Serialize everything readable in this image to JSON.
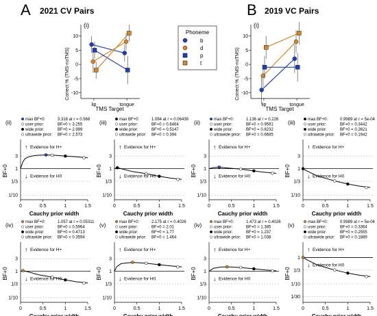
{
  "panels": {
    "A": {
      "letter": "A",
      "title": "2021 CV Pairs",
      "sub": "(i)"
    },
    "B": {
      "letter": "B",
      "title": "2019 VC Pairs",
      "sub": "(i)"
    }
  },
  "legend": {
    "title": "Phoneme",
    "items": [
      {
        "label": "b",
        "color": "#1f3fb5",
        "shape": "circle"
      },
      {
        "label": "d",
        "color": "#d4882a",
        "shape": "circle"
      },
      {
        "label": "p",
        "color": "#1f3fb5",
        "shape": "square"
      },
      {
        "label": "t",
        "color": "#d4882a",
        "shape": "square"
      }
    ]
  },
  "top_axes": {
    "ylabel": "Correct % (TMS-noTMS)",
    "xlabel": "TMS Target",
    "x_ticks": [
      "lip",
      "tongue"
    ],
    "y_ticks": [
      -10,
      -5,
      0,
      5,
      10
    ],
    "ylim": [
      -12,
      14
    ]
  },
  "common": {
    "ylabel": "BF+0",
    "xlabel": "Cauchy prior width",
    "h_plus": "Evidence for H+",
    "h_zero": "Evidence for H0",
    "y_ticks": [
      "3",
      "1",
      "1/3",
      "1/10"
    ],
    "y_ticks_alt": [
      "1",
      "1/3",
      "1/10",
      "1/30"
    ],
    "x_ticks": [
      "0",
      "0.5",
      "1",
      "1.5"
    ],
    "legend_labels": [
      "max BF+0:",
      "user prior:",
      "wide prior:",
      "ultrawide prior:"
    ]
  },
  "colors": {
    "blue": "#1f3fb5",
    "orange": "#d4882a",
    "dark": "#000000"
  },
  "chart_data": [
    {
      "type": "line",
      "panel": "A(i)",
      "x": [
        "lip",
        "tongue"
      ],
      "series": [
        {
          "name": "b",
          "values": [
            7,
            4
          ],
          "err": [
            3,
            3
          ]
        },
        {
          "name": "d",
          "values": [
            1,
            8
          ],
          "err": [
            4,
            3
          ]
        },
        {
          "name": "p",
          "values": [
            5,
            -2
          ],
          "err": [
            3,
            5
          ]
        },
        {
          "name": "t",
          "values": [
            -2,
            11
          ],
          "err": [
            3,
            3
          ]
        }
      ]
    },
    {
      "type": "line",
      "panel": "B(i)",
      "x": [
        "lip",
        "tongue"
      ],
      "series": [
        {
          "name": "b",
          "values": [
            -9,
            2
          ],
          "err": [
            5,
            5
          ]
        },
        {
          "name": "d",
          "values": [
            -4,
            8
          ],
          "err": [
            4,
            4
          ]
        },
        {
          "name": "p",
          "values": [
            -1,
            -1
          ],
          "err": [
            4,
            5
          ]
        },
        {
          "name": "t",
          "values": [
            6,
            11
          ],
          "err": [
            4,
            4
          ]
        }
      ]
    },
    {
      "type": "line",
      "panel": "A(ii)",
      "label": "(ii)",
      "max_color": "blue",
      "texts": [
        "3.316 at r = 0.568",
        "BF+0 = 3.255",
        "BF+0 = 2.999",
        "BF+0 = 2.573"
      ],
      "curve": [
        [
          0,
          1
        ],
        [
          0.05,
          1.8
        ],
        [
          0.1,
          2.4
        ],
        [
          0.2,
          2.9
        ],
        [
          0.35,
          3.2
        ],
        [
          0.568,
          3.316
        ],
        [
          0.8,
          3.2
        ],
        [
          1.0,
          2.999
        ],
        [
          1.25,
          2.8
        ],
        [
          1.5,
          2.573
        ]
      ],
      "max": [
        0.568,
        3.316
      ],
      "user": [
        0.707,
        3.255
      ],
      "wide": [
        1.0,
        2.999
      ],
      "ultrawide": [
        1.414,
        2.573
      ]
    },
    {
      "type": "line",
      "panel": "A(iii)",
      "label": "(iii)",
      "max_color": "dark",
      "texts": [
        "1.084 at r = 0.06439",
        "BF+0 = 0.6464",
        "BF+0 = 0.5147",
        "BF+0 = 0.394"
      ],
      "curve": [
        [
          0,
          1
        ],
        [
          0.06439,
          1.084
        ],
        [
          0.2,
          0.95
        ],
        [
          0.4,
          0.78
        ],
        [
          0.707,
          0.6464
        ],
        [
          1.0,
          0.5147
        ],
        [
          1.25,
          0.44
        ],
        [
          1.5,
          0.394
        ]
      ],
      "max": [
        0.06439,
        1.084
      ],
      "user": [
        0.707,
        0.6464
      ],
      "wide": [
        1.0,
        0.5147
      ],
      "ultrawide": [
        1.414,
        0.394
      ]
    },
    {
      "type": "line",
      "panel": "B(ii)",
      "label": "(ii)",
      "max_color": "blue",
      "texts": [
        "1.136 at r = 0.226",
        "BF+0 = 0.9591",
        "BF+0 = 0.8232",
        "BF+0 = 0.6685"
      ],
      "curve": [
        [
          0,
          1
        ],
        [
          0.1,
          1.1
        ],
        [
          0.226,
          1.136
        ],
        [
          0.4,
          1.07
        ],
        [
          0.707,
          0.9591
        ],
        [
          1.0,
          0.8232
        ],
        [
          1.25,
          0.73
        ],
        [
          1.5,
          0.6685
        ]
      ],
      "max": [
        0.226,
        1.136
      ],
      "user": [
        0.707,
        0.9591
      ],
      "wide": [
        1.0,
        0.8232
      ],
      "ultrawide": [
        1.414,
        0.6685
      ]
    },
    {
      "type": "line",
      "panel": "B(iii)",
      "label": "(iii)",
      "max_color": "dark",
      "texts": [
        "0.9989 at r = 5e-04",
        "BF+0 = 0.3442",
        "BF+0 = 0.2621",
        "BF+0 = 0.1942"
      ],
      "curve": [
        [
          0,
          1
        ],
        [
          0.1,
          0.8
        ],
        [
          0.3,
          0.55
        ],
        [
          0.5,
          0.43
        ],
        [
          0.707,
          0.3442
        ],
        [
          1.0,
          0.2621
        ],
        [
          1.25,
          0.22
        ],
        [
          1.5,
          0.1942
        ]
      ],
      "max": [
        0.0005,
        0.9989
      ],
      "user": [
        0.707,
        0.3442
      ],
      "wide": [
        1.0,
        0.2621
      ],
      "ultrawide": [
        1.414,
        0.1942
      ]
    },
    {
      "type": "line",
      "panel": "A(iv)",
      "label": "(iv)",
      "max_color": "orange",
      "texts": [
        "1.057 at r = 0.05311",
        "BF+0 = 0.5964",
        "BF+0 = 0.4713",
        "BF+0 = 0.3594"
      ],
      "curve": [
        [
          0,
          1
        ],
        [
          0.05311,
          1.057
        ],
        [
          0.2,
          0.92
        ],
        [
          0.4,
          0.74
        ],
        [
          0.707,
          0.5964
        ],
        [
          1.0,
          0.4713
        ],
        [
          1.25,
          0.4
        ],
        [
          1.5,
          0.3594
        ]
      ],
      "max": [
        0.05311,
        1.057
      ],
      "user": [
        0.707,
        0.5964
      ],
      "wide": [
        1.0,
        0.4713
      ],
      "ultrawide": [
        1.414,
        0.3594
      ]
    },
    {
      "type": "line",
      "panel": "A(v)",
      "label": "(v)",
      "max_color": "orange",
      "texts": [
        "2.175 at r = 0.4026",
        "BF+0 = 2.01",
        "BF+0 = 1.77",
        "BF+0 = 1.464"
      ],
      "curve": [
        [
          0,
          1
        ],
        [
          0.05,
          1.5
        ],
        [
          0.15,
          1.95
        ],
        [
          0.4026,
          2.175
        ],
        [
          0.707,
          2.01
        ],
        [
          1.0,
          1.77
        ],
        [
          1.25,
          1.6
        ],
        [
          1.5,
          1.464
        ]
      ],
      "max": [
        0.4026,
        2.175
      ],
      "user": [
        0.707,
        2.01
      ],
      "wide": [
        1.0,
        1.77
      ],
      "ultrawide": [
        1.414,
        1.464
      ]
    },
    {
      "type": "line",
      "panel": "B(iv)",
      "label": "(iv)",
      "max_color": "orange",
      "texts": [
        "1.473 at r = 0.4026",
        "BF+0 = 1.385",
        "BF+0 = 1.237",
        "BF+0 = 1.038"
      ],
      "curve": [
        [
          0,
          1
        ],
        [
          0.1,
          1.3
        ],
        [
          0.25,
          1.44
        ],
        [
          0.4026,
          1.473
        ],
        [
          0.707,
          1.385
        ],
        [
          1.0,
          1.237
        ],
        [
          1.25,
          1.13
        ],
        [
          1.5,
          1.038
        ]
      ],
      "max": [
        0.4026,
        1.473
      ],
      "user": [
        0.707,
        1.385
      ],
      "wide": [
        1.0,
        1.237
      ],
      "ultrawide": [
        1.414,
        1.038
      ]
    },
    {
      "type": "line",
      "panel": "B(v)",
      "label": "(v)",
      "max_color": "orange",
      "alt_ticks": true,
      "texts": [
        "0.9989 at r = 5e-04",
        "BF+0 = 0.3364",
        "BF+0 = 0.2555",
        "BF+0 = 0.1889"
      ],
      "curve": [
        [
          0,
          1
        ],
        [
          0.1,
          0.8
        ],
        [
          0.3,
          0.54
        ],
        [
          0.5,
          0.42
        ],
        [
          0.707,
          0.3364
        ],
        [
          1.0,
          0.2555
        ],
        [
          1.25,
          0.215
        ],
        [
          1.5,
          0.1889
        ]
      ],
      "max": [
        0.0005,
        0.9989
      ],
      "user": [
        0.707,
        0.3364
      ],
      "wide": [
        1.0,
        0.2555
      ],
      "ultrawide": [
        1.414,
        0.1889
      ]
    }
  ]
}
